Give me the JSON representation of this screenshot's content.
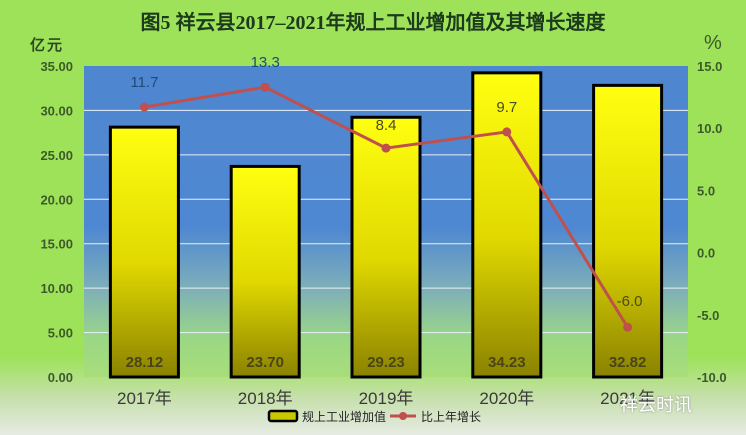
{
  "title": "图5  祥云县2017–2021年规上工业增加值及其增长速度",
  "left_unit": "亿元",
  "right_unit": "%",
  "legend": {
    "bar_label": "规上工业增加值",
    "line_label": "比上年增长"
  },
  "watermark": "祥云时讯",
  "colors": {
    "bar_fill_top": "#ffff10",
    "bar_fill_bottom": "#8a8200",
    "line": "#c0504d",
    "plot_top": "#4f86d0",
    "plot_bottom": "#a8dd7a",
    "background": "#9ee25a"
  },
  "chart_data": {
    "type": "bar+line",
    "title": "图5  祥云县2017–2021年规上工业增加值及其增长速度",
    "categories": [
      "2017年",
      "2018年",
      "2019年",
      "2020年",
      "2021年"
    ],
    "series": [
      {
        "name": "规上工业增加值",
        "type": "bar",
        "axis": "left",
        "values": [
          28.12,
          23.7,
          29.23,
          34.23,
          32.82
        ],
        "labels": [
          "28.12",
          "23.70",
          "29.23",
          "34.23",
          "32.82"
        ]
      },
      {
        "name": "比上年增长",
        "type": "line",
        "axis": "right",
        "values": [
          11.7,
          13.3,
          8.4,
          9.7,
          -6.0
        ],
        "labels": [
          "11.7",
          "13.3",
          "8.4",
          "9.7",
          "-6.0"
        ]
      }
    ],
    "ylabel": "亿元",
    "y2label": "%",
    "ylim": [
      0,
      35
    ],
    "y2lim": [
      -10,
      15
    ],
    "yticks": [
      "0.00",
      "5.00",
      "10.00",
      "15.00",
      "20.00",
      "25.00",
      "30.00",
      "35.00"
    ],
    "y2ticks": [
      "-10.0",
      "-5.0",
      "0.0",
      "5.0",
      "10.0",
      "15.0"
    ],
    "grid": true,
    "legend_position": "bottom"
  }
}
